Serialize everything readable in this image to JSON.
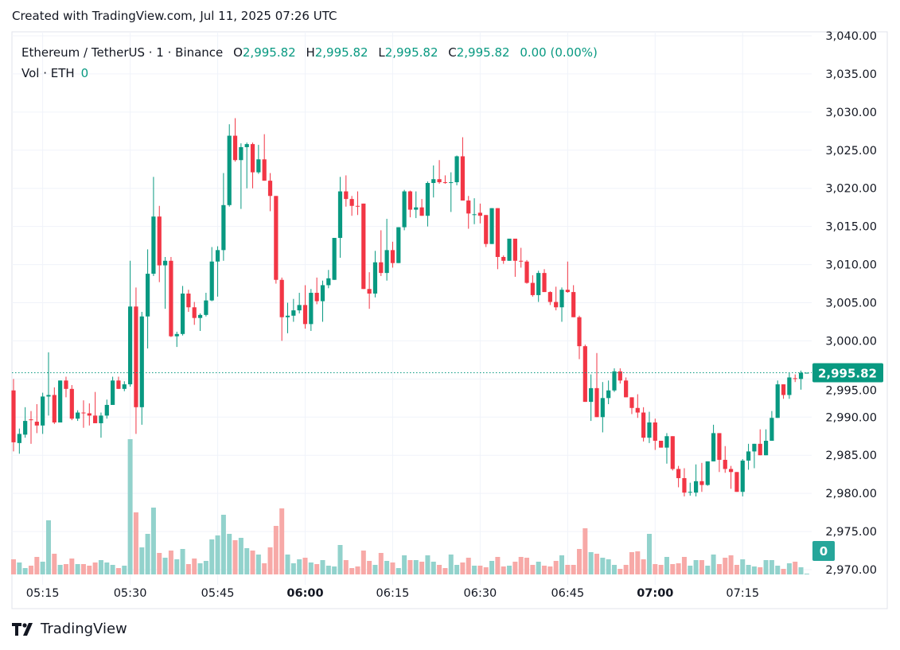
{
  "header": {
    "created": "Created with TradingView.com, Jul 11, 2025 07:26 UTC",
    "symbol": "Ethereum / TetherUS · 1 · Binance",
    "o_label": "O",
    "o_value": "2,995.82",
    "h_label": "H",
    "h_value": "2,995.82",
    "l_label": "L",
    "l_value": "2,995.82",
    "c_label": "C",
    "c_value": "2,995.82",
    "change": "0.00 (0.00%)",
    "vol_label": "Vol · ETH",
    "vol_value": "0"
  },
  "footer": {
    "brand": "TradingView",
    "logo_icon": "tradingview-logo-icon"
  },
  "colors": {
    "up": "#089981",
    "down": "#f23645",
    "vol_up": "#92d2cc",
    "vol_down": "#f7a9a7",
    "grid": "#f0f3fa",
    "price_tag": "#089981",
    "vol_tag": "#26a69a"
  },
  "chart_data": {
    "type": "candlestick",
    "interval_minutes": 1,
    "ylim": [
      2970,
      3040
    ],
    "grid": true,
    "price_ticks": [
      "3,040.00",
      "3,035.00",
      "3,030.00",
      "3,025.00",
      "3,020.00",
      "3,015.00",
      "3,010.00",
      "3,005.00",
      "3,000.00",
      "2,995.00",
      "2,990.00",
      "2,985.00",
      "2,980.00",
      "2,975.00",
      "2,970.00"
    ],
    "time_ticks": [
      {
        "label": "05:15",
        "bold": false
      },
      {
        "label": "05:30",
        "bold": false
      },
      {
        "label": "05:45",
        "bold": false
      },
      {
        "label": "06:00",
        "bold": true
      },
      {
        "label": "06:15",
        "bold": false
      },
      {
        "label": "06:30",
        "bold": false
      },
      {
        "label": "06:45",
        "bold": false
      },
      {
        "label": "07:00",
        "bold": true
      },
      {
        "label": "07:15",
        "bold": false
      }
    ],
    "last_price": 2995.82,
    "last_price_label": "2,995.82",
    "last_volume_label": "0",
    "volume_units": "relative",
    "candle_fields": [
      "time",
      "open",
      "high",
      "low",
      "close",
      "volume"
    ],
    "candles": [
      [
        "05:10",
        2993.5,
        2995.0,
        2985.5,
        2986.7,
        19
      ],
      [
        "05:11",
        2986.6,
        2988.5,
        2985.2,
        2987.8,
        15
      ],
      [
        "05:12",
        2987.7,
        2991.3,
        2987.3,
        2989.5,
        8
      ],
      [
        "05:13",
        2989.7,
        2990.8,
        2986.5,
        2989.6,
        11
      ],
      [
        "05:14",
        2989.4,
        2991.7,
        2987.9,
        2988.9,
        22
      ],
      [
        "05:15",
        2988.9,
        2993.2,
        2987.8,
        2992.7,
        16
      ],
      [
        "05:16",
        2992.7,
        2998.5,
        2990.2,
        2992.9,
        68
      ],
      [
        "05:17",
        2992.9,
        2993.9,
        2989.1,
        2989.3,
        26
      ],
      [
        "05:18",
        2989.3,
        2994.8,
        2989.3,
        2994.8,
        12
      ],
      [
        "05:19",
        2994.8,
        2995.3,
        2992.6,
        2993.7,
        13
      ],
      [
        "05:20",
        2993.7,
        2994.2,
        2989.6,
        2989.8,
        20
      ],
      [
        "05:21",
        2989.8,
        2990.9,
        2989.5,
        2990.6,
        13
      ],
      [
        "05:22",
        2990.6,
        2992.2,
        2988.6,
        2990.5,
        13
      ],
      [
        "05:23",
        2990.5,
        2991.8,
        2988.9,
        2990.2,
        11
      ],
      [
        "05:24",
        2990.2,
        2993.3,
        2989.2,
        2989.2,
        15
      ],
      [
        "05:25",
        2989.2,
        2990.6,
        2987.3,
        2990.2,
        18
      ],
      [
        "05:26",
        2990.2,
        2992.3,
        2989.8,
        2991.6,
        15
      ],
      [
        "05:27",
        2991.6,
        2995.3,
        2991.6,
        2994.8,
        12
      ],
      [
        "05:28",
        2994.8,
        2995.3,
        2993.7,
        2993.7,
        8
      ],
      [
        "05:29",
        2993.7,
        2994.7,
        2993.4,
        2994.3,
        11
      ],
      [
        "05:30",
        2994.3,
        3010.5,
        2994.0,
        3004.5,
        170
      ],
      [
        "05:31",
        3004.5,
        3007.0,
        2987.8,
        2991.3,
        78
      ],
      [
        "05:32",
        2991.3,
        3003.8,
        2989.0,
        3003.2,
        34
      ],
      [
        "05:33",
        3003.2,
        3012.0,
        2999.0,
        3008.8,
        51
      ],
      [
        "05:34",
        3008.8,
        3021.5,
        3008.5,
        3016.3,
        84
      ],
      [
        "05:35",
        3016.3,
        3017.7,
        3007.7,
        3009.9,
        27
      ],
      [
        "05:36",
        3009.9,
        3011.0,
        3004.2,
        3010.5,
        21
      ],
      [
        "05:37",
        3010.5,
        3011.0,
        3000.5,
        3000.6,
        30
      ],
      [
        "05:38",
        3000.6,
        3001.2,
        2999.2,
        3000.9,
        19
      ],
      [
        "05:39",
        3000.9,
        3007.2,
        3000.7,
        3006.2,
        32
      ],
      [
        "05:40",
        3006.2,
        3006.7,
        3003.8,
        3004.4,
        13
      ],
      [
        "05:41",
        3004.4,
        3005.1,
        3002.1,
        3003.0,
        20
      ],
      [
        "05:42",
        3003.0,
        3003.6,
        3001.3,
        3003.4,
        14
      ],
      [
        "05:43",
        3003.4,
        3006.3,
        3003.2,
        3005.3,
        17
      ],
      [
        "05:44",
        3005.3,
        3012.3,
        3005.2,
        3010.4,
        44
      ],
      [
        "05:45",
        3010.4,
        3012.4,
        3005.8,
        3011.9,
        49
      ],
      [
        "05:46",
        3011.9,
        3022.0,
        3010.5,
        3017.8,
        75
      ],
      [
        "05:47",
        3017.8,
        3028.4,
        3017.6,
        3026.9,
        51
      ],
      [
        "05:48",
        3026.9,
        3029.2,
        3023.5,
        3023.7,
        43
      ],
      [
        "05:49",
        3023.7,
        3025.9,
        3017.3,
        3025.4,
        46
      ],
      [
        "05:50",
        3025.4,
        3026.0,
        3020.0,
        3025.8,
        33
      ],
      [
        "05:51",
        3025.8,
        3026.0,
        3020.0,
        3022.1,
        30
      ],
      [
        "05:52",
        3022.1,
        3025.7,
        3021.9,
        3023.8,
        25
      ],
      [
        "05:53",
        3023.8,
        3027.1,
        3021.0,
        3021.0,
        14
      ],
      [
        "05:54",
        3021.0,
        3022.0,
        3017.0,
        3019.0,
        34
      ],
      [
        "05:55",
        3019.0,
        3019.0,
        3007.5,
        3008.0,
        61
      ],
      [
        "05:56",
        3008.0,
        3008.3,
        3000.0,
        3003.1,
        83
      ],
      [
        "05:57",
        3003.1,
        3005.0,
        3001.0,
        3003.3,
        25
      ],
      [
        "05:58",
        3003.3,
        3005.5,
        3002.5,
        3004.0,
        14
      ],
      [
        "05:59",
        3004.0,
        3006.3,
        3003.6,
        3004.7,
        19
      ],
      [
        "06:00",
        3004.7,
        3007.3,
        3001.6,
        3002.2,
        21
      ],
      [
        "06:01",
        3002.2,
        3006.8,
        3001.3,
        3006.3,
        15
      ],
      [
        "06:02",
        3006.3,
        3008.3,
        3004.8,
        3005.2,
        13
      ],
      [
        "06:03",
        3005.2,
        3007.9,
        3002.5,
        3007.3,
        18
      ],
      [
        "06:04",
        3007.3,
        3009.3,
        3006.9,
        3008.2,
        11
      ],
      [
        "06:05",
        3008.0,
        3013.5,
        3008.0,
        3013.5,
        10
      ],
      [
        "06:06",
        3013.5,
        3021.5,
        3010.9,
        3019.6,
        37
      ],
      [
        "06:07",
        3019.6,
        3021.7,
        3017.6,
        3018.6,
        18
      ],
      [
        "06:08",
        3018.6,
        3019.0,
        3016.4,
        3017.7,
        8
      ],
      [
        "06:09",
        3017.7,
        3019.6,
        3016.5,
        3017.6,
        10
      ],
      [
        "06:10",
        3018.0,
        3018.0,
        3006.8,
        3006.8,
        30
      ],
      [
        "06:11",
        3006.8,
        3009.0,
        3004.2,
        3006.2,
        17
      ],
      [
        "06:12",
        3006.2,
        3011.8,
        3005.7,
        3010.3,
        12
      ],
      [
        "06:13",
        3010.3,
        3014.5,
        3008.5,
        3008.9,
        27
      ],
      [
        "06:14",
        3008.9,
        3016.0,
        3007.9,
        3011.9,
        17
      ],
      [
        "06:15",
        3011.9,
        3013.0,
        3009.6,
        3010.2,
        15
      ],
      [
        "06:16",
        3010.2,
        3014.9,
        3010.2,
        3014.9,
        8
      ],
      [
        "06:17",
        3014.9,
        3019.8,
        3014.5,
        3019.6,
        24
      ],
      [
        "06:18",
        3019.6,
        3019.7,
        3016.2,
        3017.2,
        18
      ],
      [
        "06:19",
        3017.2,
        3019.6,
        3016.1,
        3017.5,
        18
      ],
      [
        "06:20",
        3017.5,
        3018.6,
        3016.4,
        3016.4,
        16
      ],
      [
        "06:21",
        3016.4,
        3020.9,
        3015.0,
        3020.7,
        24
      ],
      [
        "06:22",
        3020.7,
        3023.0,
        3018.8,
        3021.2,
        16
      ],
      [
        "06:23",
        3021.2,
        3023.7,
        3020.6,
        3020.8,
        12
      ],
      [
        "06:24",
        3020.8,
        3021.7,
        3020.6,
        3020.7,
        8
      ],
      [
        "06:25",
        3020.7,
        3022.1,
        3016.9,
        3020.8,
        25
      ],
      [
        "06:26",
        3020.8,
        3024.3,
        3020.4,
        3024.2,
        12
      ],
      [
        "06:27",
        3024.2,
        3026.7,
        3018.4,
        3018.4,
        15
      ],
      [
        "06:28",
        3018.4,
        3019.0,
        3014.7,
        3016.7,
        21
      ],
      [
        "06:29",
        3016.6,
        3018.7,
        3015.3,
        3016.6,
        11
      ],
      [
        "06:30",
        3016.8,
        3018.0,
        3015.4,
        3016.4,
        11
      ],
      [
        "06:31",
        3016.5,
        3016.5,
        3012.3,
        3012.7,
        9
      ],
      [
        "06:32",
        3012.7,
        3017.4,
        3012.7,
        3017.4,
        17
      ],
      [
        "06:33",
        3017.4,
        3017.4,
        3009.4,
        3011.0,
        22
      ],
      [
        "06:34",
        3011.0,
        3011.2,
        3010.1,
        3010.5,
        10
      ],
      [
        "06:35",
        3010.5,
        3013.4,
        3010.5,
        3013.4,
        11
      ],
      [
        "06:36",
        3013.4,
        3013.4,
        3008.4,
        3010.5,
        16
      ],
      [
        "06:37",
        3010.5,
        3012.2,
        3009.6,
        3010.4,
        22
      ],
      [
        "06:38",
        3010.4,
        3010.6,
        3007.5,
        3007.6,
        21
      ],
      [
        "06:39",
        3007.6,
        3008.6,
        3005.8,
        3006.0,
        12
      ],
      [
        "06:40",
        3006.0,
        3009.2,
        3005.1,
        3008.9,
        16
      ],
      [
        "06:41",
        3008.9,
        3009.4,
        3006.4,
        3006.4,
        11
      ],
      [
        "06:42",
        3006.4,
        3006.5,
        3004.7,
        3005.1,
        10
      ],
      [
        "06:43",
        3005.1,
        3007.1,
        3004.0,
        3004.4,
        17
      ],
      [
        "06:44",
        3004.4,
        3007.0,
        3002.5,
        3006.7,
        24
      ],
      [
        "06:45",
        3006.7,
        3010.4,
        3006.3,
        3006.4,
        12
      ],
      [
        "06:46",
        3006.4,
        3007.3,
        3003.1,
        3003.1,
        12
      ],
      [
        "06:47",
        3003.1,
        3003.3,
        2997.6,
        2999.3,
        32
      ],
      [
        "06:48",
        2999.3,
        2999.5,
        2992.0,
        2992.0,
        58
      ],
      [
        "06:49",
        2992.0,
        2995.6,
        2989.5,
        2993.8,
        28
      ],
      [
        "06:50",
        2993.8,
        2998.4,
        2990.0,
        2990.0,
        26
      ],
      [
        "06:51",
        2990.0,
        2994.6,
        2988.0,
        2992.5,
        21
      ],
      [
        "06:52",
        2992.5,
        2994.8,
        2991.7,
        2993.5,
        19
      ],
      [
        "06:53",
        2993.5,
        2996.4,
        2993.3,
        2996.0,
        12
      ],
      [
        "06:54",
        2996.0,
        2996.4,
        2994.4,
        2994.8,
        7
      ],
      [
        "06:55",
        2994.8,
        2995.2,
        2992.6,
        2992.6,
        12
      ],
      [
        "06:56",
        2992.6,
        2992.6,
        2990.4,
        2991.2,
        28
      ],
      [
        "06:57",
        2991.2,
        2993.0,
        2989.9,
        2990.6,
        29
      ],
      [
        "06:58",
        2990.6,
        2991.3,
        2986.8,
        2987.3,
        19
      ],
      [
        "06:59",
        2987.3,
        2990.7,
        2986.6,
        2989.3,
        51
      ],
      [
        "07:00",
        2989.3,
        2989.8,
        2985.7,
        2986.9,
        13
      ],
      [
        "07:01",
        2986.9,
        2986.9,
        2986.0,
        2986.0,
        12
      ],
      [
        "07:02",
        2986.0,
        2987.9,
        2983.9,
        2987.5,
        22
      ],
      [
        "07:03",
        2987.5,
        2987.5,
        2983.0,
        2983.2,
        13
      ],
      [
        "07:04",
        2983.2,
        2983.6,
        2980.8,
        2982.0,
        14
      ],
      [
        "07:05",
        2982.0,
        2983.3,
        2979.6,
        2980.1,
        22
      ],
      [
        "07:06",
        2980.1,
        2981.4,
        2979.7,
        2980.2,
        11
      ],
      [
        "07:07",
        2980.1,
        2983.8,
        2979.6,
        2981.6,
        18
      ],
      [
        "07:08",
        2981.6,
        2984.0,
        2980.2,
        2981.1,
        18
      ],
      [
        "07:09",
        2981.1,
        2984.2,
        2981.0,
        2984.2,
        11
      ],
      [
        "07:10",
        2984.2,
        2989.0,
        2984.2,
        2987.9,
        25
      ],
      [
        "07:11",
        2987.9,
        2987.9,
        2982.8,
        2984.4,
        13
      ],
      [
        "07:12",
        2984.4,
        2986.2,
        2982.7,
        2983.2,
        21
      ],
      [
        "07:13",
        2983.2,
        2983.6,
        2980.6,
        2982.8,
        24
      ],
      [
        "07:14",
        2982.8,
        2982.8,
        2980.2,
        2980.2,
        12
      ],
      [
        "07:15",
        2980.2,
        2984.5,
        2979.6,
        2984.3,
        19
      ],
      [
        "07:16",
        2984.3,
        2986.5,
        2983.1,
        2985.5,
        12
      ],
      [
        "07:17",
        2985.5,
        2986.5,
        2983.3,
        2986.5,
        10
      ],
      [
        "07:18",
        2986.5,
        2988.4,
        2985.0,
        2985.0,
        9
      ],
      [
        "07:19",
        2985.0,
        2988.4,
        2985.0,
        2986.9,
        18
      ],
      [
        "07:20",
        2986.9,
        2990.8,
        2986.9,
        2989.9,
        18
      ],
      [
        "07:21",
        2989.9,
        2994.8,
        2989.9,
        2994.3,
        11
      ],
      [
        "07:22",
        2994.3,
        2994.3,
        2992.4,
        2992.9,
        7
      ],
      [
        "07:23",
        2992.9,
        2995.8,
        2992.4,
        2995.2,
        14
      ],
      [
        "07:24",
        2995.1,
        2995.6,
        2994.6,
        2995.0,
        16
      ],
      [
        "07:25",
        2995.0,
        2996.1,
        2993.6,
        2995.82,
        9
      ],
      [
        "07:26",
        2995.82,
        2995.82,
        2995.82,
        2995.82,
        0
      ]
    ]
  }
}
